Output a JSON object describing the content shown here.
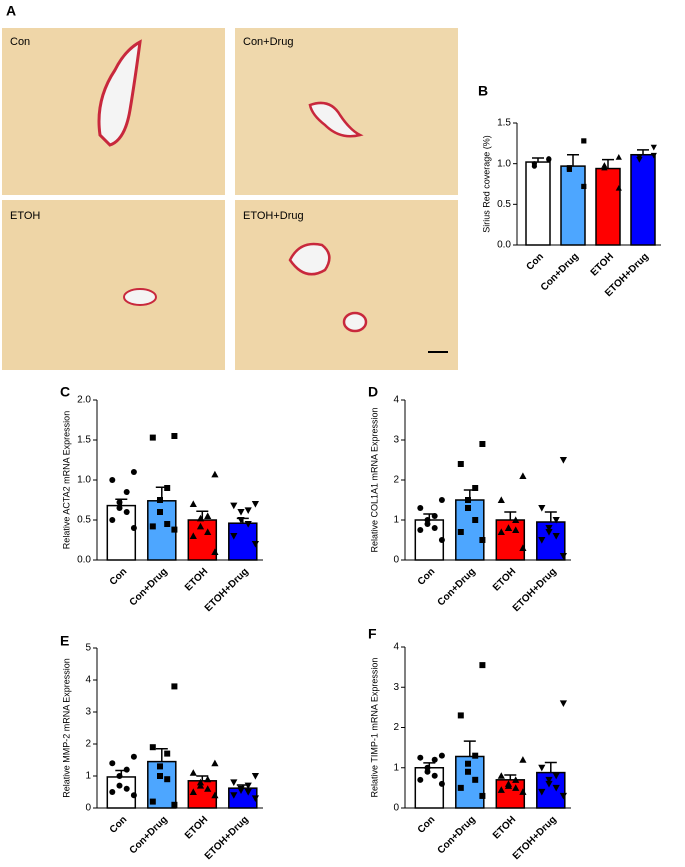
{
  "panel_a": {
    "label": "A",
    "images": [
      {
        "label": "Con"
      },
      {
        "label": "Con+Drug"
      },
      {
        "label": "ETOH"
      },
      {
        "label": "ETOH+Drug"
      }
    ]
  },
  "chart_data": [
    {
      "type": "bar",
      "panel": "B",
      "ylabel": "Sirius Red coverage (%)",
      "categories": [
        "Con",
        "Con+Drug",
        "ETOH",
        "ETOH+Drug"
      ],
      "colors": [
        "#ffffff",
        "#4da6ff",
        "#ff0000",
        "#0000ff"
      ],
      "markers": [
        "circle",
        "square",
        "triangle-up",
        "triangle-down"
      ],
      "values": [
        1.02,
        0.97,
        0.94,
        1.11
      ],
      "errors": [
        0.05,
        0.14,
        0.11,
        0.06
      ],
      "points": [
        [
          1.06,
          1.0,
          0.97,
          1.05
        ],
        [
          1.28,
          0.95,
          0.93,
          0.72
        ],
        [
          1.08,
          0.98,
          0.95,
          0.7
        ],
        [
          1.2,
          1.05,
          1.08,
          1.1
        ]
      ],
      "ylim": [
        0,
        1.5
      ],
      "yticks": [
        {
          "value": 0,
          "label": "0.0"
        },
        {
          "value": 0.5,
          "label": "0.5"
        },
        {
          "value": 1,
          "label": "1.0"
        },
        {
          "value": 1.5,
          "label": "1.5"
        }
      ]
    },
    {
      "type": "bar",
      "panel": "C",
      "ylabel": "Relative ACTA2 mRNA Expression",
      "categories": [
        "Con",
        "Con+Drug",
        "ETOH",
        "ETOH+Drug"
      ],
      "colors": [
        "#ffffff",
        "#4da6ff",
        "#ff0000",
        "#0000ff"
      ],
      "markers": [
        "circle",
        "square",
        "triangle-up",
        "triangle-down"
      ],
      "values": [
        0.68,
        0.74,
        0.5,
        0.46
      ],
      "errors": [
        0.08,
        0.17,
        0.11,
        0.06
      ],
      "points": [
        [
          1.1,
          1.0,
          0.85,
          0.72,
          0.65,
          0.6,
          0.5,
          0.4
        ],
        [
          1.55,
          1.53,
          0.9,
          0.75,
          0.6,
          0.45,
          0.42,
          0.38
        ],
        [
          1.07,
          0.7,
          0.55,
          0.52,
          0.42,
          0.35,
          0.3,
          0.1
        ],
        [
          0.7,
          0.68,
          0.62,
          0.6,
          0.5,
          0.45,
          0.3,
          0.2
        ]
      ],
      "ylim": [
        0,
        2
      ],
      "yticks": [
        {
          "value": 0,
          "label": "0.0"
        },
        {
          "value": 0.5,
          "label": "0.5"
        },
        {
          "value": 1,
          "label": "1.0"
        },
        {
          "value": 1.5,
          "label": "1.5"
        },
        {
          "value": 2,
          "label": "2.0"
        }
      ]
    },
    {
      "type": "bar",
      "panel": "D",
      "ylabel": "Relative COL1A1 mRNA Expression",
      "categories": [
        "Con",
        "Con+Drug",
        "ETOH",
        "ETOH+Drug"
      ],
      "colors": [
        "#ffffff",
        "#4da6ff",
        "#ff0000",
        "#0000ff"
      ],
      "markers": [
        "circle",
        "square",
        "triangle-up",
        "triangle-down"
      ],
      "values": [
        1.0,
        1.5,
        1.0,
        0.95
      ],
      "errors": [
        0.15,
        0.25,
        0.2,
        0.25
      ],
      "points": [
        [
          1.5,
          1.3,
          1.1,
          1.0,
          0.9,
          0.8,
          0.75,
          0.5
        ],
        [
          2.9,
          2.4,
          1.8,
          1.5,
          1.3,
          1.0,
          0.7,
          0.5
        ],
        [
          2.1,
          1.5,
          1.0,
          0.8,
          0.8,
          0.75,
          0.7,
          0.3
        ],
        [
          2.5,
          1.3,
          1.0,
          0.8,
          0.7,
          0.6,
          0.5,
          0.1
        ]
      ],
      "ylim": [
        0,
        4
      ],
      "yticks": [
        0,
        1,
        2,
        3,
        4
      ]
    },
    {
      "type": "bar",
      "panel": "E",
      "ylabel": "Relative MMP-2 mRNA Expression",
      "categories": [
        "Con",
        "Con+Drug",
        "ETOH",
        "ETOH+Drug"
      ],
      "colors": [
        "#ffffff",
        "#4da6ff",
        "#ff0000",
        "#0000ff"
      ],
      "markers": [
        "circle",
        "square",
        "triangle-up",
        "triangle-down"
      ],
      "values": [
        0.97,
        1.45,
        0.85,
        0.62
      ],
      "errors": [
        0.2,
        0.4,
        0.15,
        0.1
      ],
      "points": [
        [
          1.6,
          1.4,
          1.2,
          1.0,
          0.7,
          0.6,
          0.5,
          0.4
        ],
        [
          3.8,
          1.9,
          1.7,
          1.3,
          1.0,
          0.9,
          0.2,
          0.1
        ],
        [
          1.4,
          1.1,
          0.9,
          0.8,
          0.7,
          0.6,
          0.5,
          0.4
        ],
        [
          1.0,
          0.8,
          0.7,
          0.6,
          0.55,
          0.5,
          0.4,
          0.3
        ]
      ],
      "ylim": [
        0,
        5
      ],
      "yticks": [
        0,
        1,
        2,
        3,
        4,
        5
      ]
    },
    {
      "type": "bar",
      "panel": "F",
      "ylabel": "Relative TIMP-1 mRNA Expression",
      "categories": [
        "Con",
        "Con+Drug",
        "ETOH",
        "ETOH+Drug"
      ],
      "colors": [
        "#ffffff",
        "#4da6ff",
        "#ff0000",
        "#0000ff"
      ],
      "markers": [
        "circle",
        "square",
        "triangle-up",
        "triangle-down"
      ],
      "values": [
        1.0,
        1.28,
        0.7,
        0.88
      ],
      "errors": [
        0.12,
        0.38,
        0.12,
        0.25
      ],
      "points": [
        [
          1.3,
          1.25,
          1.2,
          1.0,
          0.9,
          0.8,
          0.7,
          0.6
        ],
        [
          3.55,
          2.3,
          1.3,
          1.1,
          0.9,
          0.7,
          0.5,
          0.3
        ],
        [
          1.2,
          0.8,
          0.7,
          0.6,
          0.55,
          0.5,
          0.45,
          0.4
        ],
        [
          2.6,
          1.0,
          0.8,
          0.7,
          0.6,
          0.5,
          0.4,
          0.3
        ]
      ],
      "ylim": [
        0,
        4
      ],
      "yticks": [
        0,
        1,
        2,
        3,
        4
      ]
    }
  ]
}
